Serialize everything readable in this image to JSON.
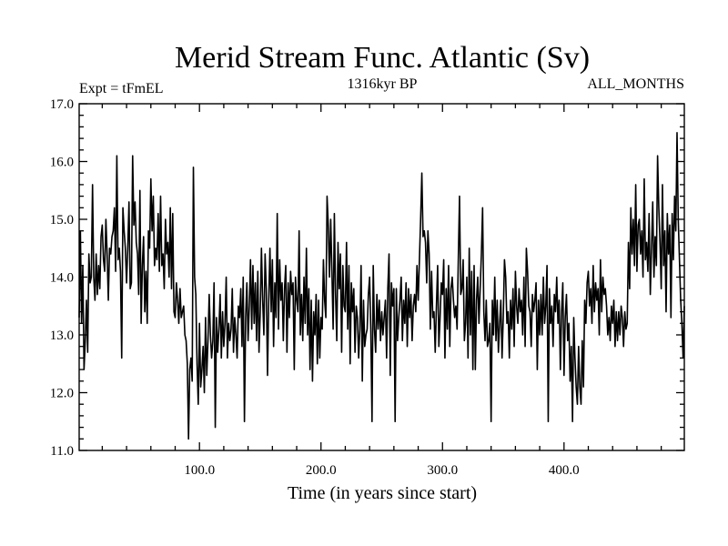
{
  "chart_data": {
    "type": "line",
    "title": "Merid Stream Func. Atlantic (Sv)",
    "subtitle_left": "Expt = tFmEL",
    "subtitle_center": "1316kyr BP",
    "subtitle_right": "ALL_MONTHS",
    "xlabel": "Time (in years since start)",
    "ylabel": "",
    "xlim": [
      1,
      499
    ],
    "ylim": [
      11.0,
      17.0
    ],
    "x_ticks": [
      100,
      200,
      300,
      400
    ],
    "x_tick_labels": [
      "100.0",
      "200.0",
      "300.0",
      "400.0"
    ],
    "y_ticks": [
      11,
      12,
      13,
      14,
      15,
      16,
      17
    ],
    "y_tick_labels": [
      "11.0",
      "12.0",
      "13.0",
      "14.0",
      "15.0",
      "16.0",
      "17.0"
    ],
    "grid": false,
    "x_start": 1,
    "x_step": 1,
    "y": [
      13.3,
      14.8,
      13.2,
      14.2,
      12.4,
      12.9,
      13.6,
      12.7,
      14.4,
      13.9,
      14.0,
      15.6,
      14.0,
      13.6,
      14.4,
      13.7,
      14.2,
      13.8,
      14.7,
      14.9,
      14.3,
      14.1,
      15.0,
      14.4,
      13.6,
      14.5,
      14.4,
      14.7,
      14.8,
      15.2,
      14.1,
      16.1,
      14.3,
      14.5,
      14.1,
      12.6,
      15.2,
      14.8,
      14.5,
      13.9,
      14.5,
      15.3,
      13.8,
      13.9,
      16.1,
      14.9,
      15.3,
      14.6,
      14.4,
      13.7,
      15.5,
      13.2,
      14.2,
      14.7,
      13.4,
      14.1,
      13.2,
      14.8,
      14.5,
      15.7,
      14.8,
      15.4,
      14.2,
      14.5,
      14.3,
      15.1,
      14.1,
      15.4,
      14.2,
      14.4,
      13.8,
      15.0,
      14.4,
      14.6,
      14.0,
      15.2,
      13.8,
      15.1,
      13.4,
      13.3,
      13.9,
      13.6,
      13.2,
      13.8,
      13.3,
      13.4,
      13.5,
      13.0,
      12.9,
      12.5,
      11.2,
      12.4,
      12.6,
      12.2,
      15.9,
      14.0,
      13.7,
      12.5,
      11.8,
      13.2,
      12.1,
      12.4,
      12.8,
      12.0,
      13.3,
      12.3,
      12.9,
      13.7,
      13.0,
      12.6,
      12.9,
      13.9,
      11.4,
      13.3,
      12.7,
      13.1,
      13.7,
      12.6,
      13.4,
      12.8,
      13.2,
      14.0,
      12.6,
      13.2,
      12.9,
      13.1,
      13.8,
      12.7,
      13.3,
      13.0,
      12.6,
      13.5,
      13.3,
      13.8,
      12.8,
      14.0,
      11.5,
      13.3,
      13.9,
      12.9,
      13.5,
      14.3,
      13.1,
      14.2,
      13.2,
      13.9,
      12.9,
      14.1,
      12.7,
      13.4,
      14.5,
      13.6,
      13.0,
      14.4,
      13.8,
      12.3,
      13.6,
      14.5,
      13.4,
      14.3,
      12.8,
      13.9,
      13.3,
      15.1,
      13.1,
      14.3,
      13.6,
      13.9,
      12.9,
      13.8,
      14.2,
      12.7,
      13.9,
      13.3,
      14.1,
      13.7,
      13.9,
      12.4,
      14.0,
      13.6,
      13.4,
      14.8,
      13.0,
      13.7,
      12.9,
      14.0,
      13.2,
      14.5,
      13.0,
      13.8,
      12.4,
      13.6,
      12.2,
      13.4,
      13.0,
      13.7,
      12.5,
      13.6,
      12.6,
      13.3,
      13.1,
      14.3,
      13.6,
      13.3,
      15.4,
      14.9,
      14.0,
      15.0,
      14.1,
      13.1,
      15.1,
      13.7,
      12.9,
      14.6,
      13.8,
      14.4,
      12.7,
      14.2,
      13.5,
      13.4,
      14.6,
      13.1,
      14.2,
      12.5,
      13.9,
      13.4,
      13.8,
      12.7,
      13.5,
      13.3,
      12.6,
      13.1,
      14.2,
      12.2,
      13.6,
      12.8,
      13.0,
      13.1,
      13.7,
      14.0,
      13.1,
      11.5,
      14.2,
      13.1,
      12.7,
      13.7,
      13.1,
      13.6,
      12.9,
      13.4,
      13.0,
      13.3,
      13.6,
      12.6,
      13.8,
      14.4,
      12.3,
      13.9,
      13.5,
      13.8,
      11.5,
      13.8,
      12.9,
      13.3,
      13.6,
      14.0,
      12.9,
      13.6,
      13.2,
      13.9,
      12.8,
      13.8,
      13.3,
      13.7,
      12.9,
      13.5,
      13.7,
      13.4,
      14.2,
      13.6,
      14.3,
      15.0,
      15.8,
      14.7,
      14.8,
      14.6,
      13.9,
      14.8,
      14.4,
      13.1,
      14.1,
      13.3,
      13.4,
      12.7,
      13.5,
      14.2,
      12.8,
      13.3,
      13.9,
      13.7,
      14.3,
      12.6,
      13.8,
      13.1,
      14.2,
      12.8,
      13.8,
      14.0,
      13.6,
      13.3,
      13.5,
      13.1,
      14.3,
      15.4,
      13.7,
      13.8,
      14.3,
      12.9,
      13.2,
      14.0,
      12.6,
      14.5,
      13.0,
      14.1,
      12.4,
      14.2,
      12.4,
      13.6,
      14.0,
      13.2,
      13.8,
      14.4,
      15.2,
      13.4,
      12.9,
      13.6,
      12.8,
      12.9,
      13.2,
      11.5,
      13.6,
      13.0,
      14.0,
      12.9,
      13.6,
      12.7,
      13.2,
      13.6,
      12.6,
      13.3,
      14.3,
      14.0,
      13.2,
      13.4,
      12.6,
      13.6,
      13.1,
      13.8,
      12.8,
      14.1,
      13.5,
      13.2,
      13.8,
      13.4,
      13.6,
      13.0,
      14.0,
      12.8,
      14.5,
      14.1,
      13.5,
      13.4,
      12.8,
      13.7,
      13.4,
      13.6,
      13.9,
      12.4,
      13.6,
      13.0,
      13.7,
      13.0,
      14.0,
      13.2,
      13.5,
      14.2,
      11.5,
      13.8,
      13.2,
      13.5,
      12.8,
      13.7,
      13.4,
      14.0,
      13.2,
      13.6,
      12.4,
      13.4,
      13.9,
      12.3,
      13.3,
      13.7,
      12.9,
      13.2,
      12.2,
      12.8,
      11.5,
      13.3,
      12.6,
      12.1,
      11.8,
      12.8,
      12.1,
      11.8,
      12.9,
      12.1,
      13.6,
      13.2,
      13.9,
      14.1,
      13.5,
      13.8,
      13.2,
      14.2,
      13.4,
      13.9,
      13.6,
      13.8,
      13.0,
      14.3,
      13.4,
      14.0,
      13.7,
      13.8,
      13.5,
      13.0,
      13.3,
      12.9,
      13.5,
      13.2,
      13.6,
      12.8,
      13.4,
      12.9,
      13.4,
      13.0,
      13.5,
      13.3,
      12.8,
      13.4,
      13.1,
      13.2,
      14.6,
      13.8,
      15.2,
      14.4,
      15.0,
      14.2,
      15.6,
      14.1,
      14.9,
      15.0,
      14.4,
      14.8,
      14.0,
      15.7,
      14.3,
      14.6,
      14.1,
      15.1,
      13.7,
      14.5,
      15.3,
      14.0,
      14.7,
      14.2,
      16.1,
      15.2,
      14.6,
      13.8,
      15.6,
      14.2,
      14.8,
      13.4,
      15.1,
      14.4,
      14.9,
      13.3,
      15.1,
      14.3,
      15.4,
      14.8,
      16.5,
      15.0,
      14.3,
      13.6,
      13.2,
      12.6,
      13.5
    ]
  }
}
